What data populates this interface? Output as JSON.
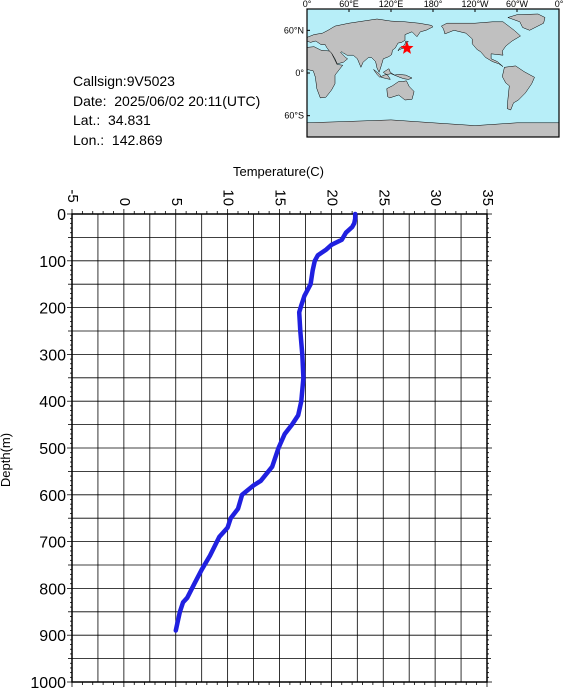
{
  "info": {
    "callsign": "Callsign:9V5023",
    "date": "Date:  2025/06/02 20:11(UTC)",
    "lat": "Lat.:  34.831",
    "lon": "Lon.:  142.869"
  },
  "map": {
    "top_labels": [
      "0°",
      "60°E",
      "120°E",
      "180°",
      "120°W",
      "60°W",
      "0°"
    ],
    "left_labels": [
      "60°N",
      "0°",
      "60°S"
    ],
    "marker": {
      "lon": 142.869,
      "lat": 34.831,
      "color": "#ff0000"
    },
    "ocean_color": "#b7eef8",
    "land_color": "#c0c0c0"
  },
  "chart_data": {
    "type": "line",
    "xlabel": "Temperature(C)",
    "ylabel": "Depth(m)",
    "xlim": [
      -5,
      35
    ],
    "ylim": [
      0,
      1000
    ],
    "y_inverted": true,
    "x_ticks": [
      -5,
      0,
      5,
      10,
      15,
      20,
      25,
      30,
      35
    ],
    "y_ticks": [
      0,
      100,
      200,
      300,
      400,
      500,
      600,
      700,
      800,
      900,
      1000
    ],
    "grid": true,
    "series": [
      {
        "color": "#2020e0",
        "points": [
          [
            22.3,
            0
          ],
          [
            22.3,
            10
          ],
          [
            22.2,
            20
          ],
          [
            22.0,
            28
          ],
          [
            21.4,
            40
          ],
          [
            21.0,
            55
          ],
          [
            20.0,
            66
          ],
          [
            19.5,
            76
          ],
          [
            18.7,
            88
          ],
          [
            18.4,
            100
          ],
          [
            18.2,
            120
          ],
          [
            18.0,
            150
          ],
          [
            17.4,
            175
          ],
          [
            17.1,
            195
          ],
          [
            16.9,
            210
          ],
          [
            17.0,
            250
          ],
          [
            17.2,
            300
          ],
          [
            17.3,
            350
          ],
          [
            17.1,
            400
          ],
          [
            16.8,
            430
          ],
          [
            16.2,
            450
          ],
          [
            15.5,
            470
          ],
          [
            14.9,
            500
          ],
          [
            14.3,
            540
          ],
          [
            13.2,
            570
          ],
          [
            12.5,
            580
          ],
          [
            11.4,
            600
          ],
          [
            11.0,
            630
          ],
          [
            10.3,
            650
          ],
          [
            10.0,
            670
          ],
          [
            9.2,
            690
          ],
          [
            8.3,
            730
          ],
          [
            7.5,
            760
          ],
          [
            6.8,
            790
          ],
          [
            6.1,
            820
          ],
          [
            5.7,
            830
          ],
          [
            5.4,
            850
          ],
          [
            5.2,
            870
          ],
          [
            5.0,
            890
          ]
        ]
      }
    ]
  }
}
